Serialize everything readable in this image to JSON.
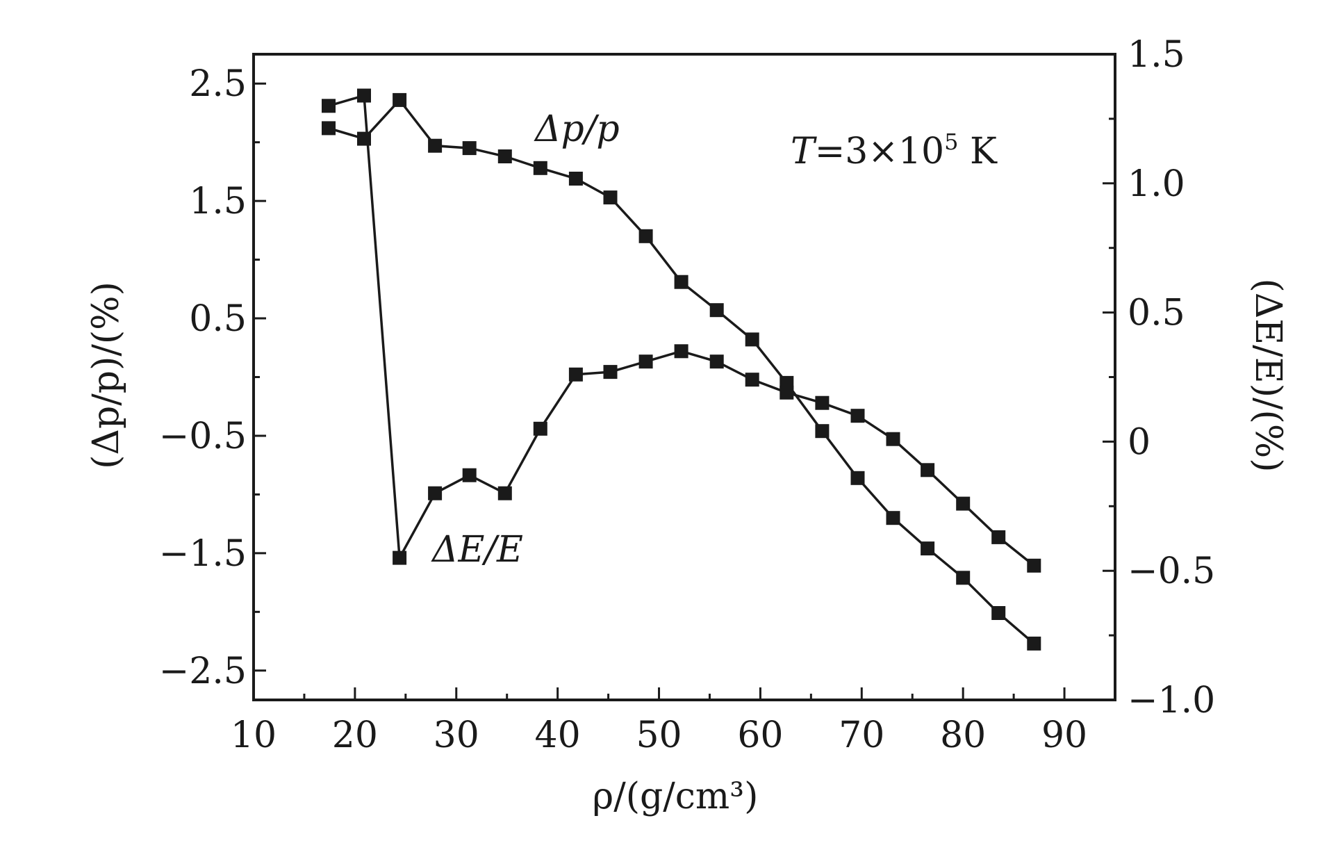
{
  "chart_data": {
    "type": "line",
    "xlabel": "ρ/(g/cm³)",
    "ylabel_left": "(Δp/p)/(%)",
    "ylabel_right": "(ΔE/E)/(%)",
    "xlim": [
      10,
      95
    ],
    "ylim_left": [
      -2.75,
      2.75
    ],
    "ylim_right": [
      -1.0,
      1.5
    ],
    "x_ticks": [
      10,
      20,
      30,
      40,
      50,
      60,
      70,
      80,
      90
    ],
    "x_tick_labels": [
      "10",
      "20",
      "30",
      "40",
      "50",
      "60",
      "70",
      "80",
      "90"
    ],
    "y_left_ticks": [
      2.5,
      1.5,
      0.5,
      -0.5,
      -1.5,
      -2.5
    ],
    "y_left_tick_labels": [
      "2.5",
      "1.5",
      "0.5",
      "−0.5",
      "−1.5",
      "−2.5"
    ],
    "y_right_ticks": [
      1.5,
      1.0,
      0.5,
      0,
      -0.5,
      -1.0
    ],
    "y_right_tick_labels": [
      "1.5",
      "1.0",
      "0.5",
      "0",
      "−0.5",
      "−1.0"
    ],
    "grid": false,
    "series": [
      {
        "name": "Δp/p",
        "axis": "left",
        "marker": "square",
        "x": [
          17.4,
          20.9,
          24.4,
          27.9,
          31.3,
          34.8,
          38.3,
          41.8,
          45.2,
          48.7,
          52.2,
          55.7,
          59.2,
          62.6,
          66.1,
          69.6,
          73.1,
          76.5,
          80.0,
          83.5,
          87.0
        ],
        "values": [
          2.12,
          2.03,
          2.36,
          1.97,
          1.95,
          1.88,
          1.78,
          1.69,
          1.53,
          1.2,
          0.81,
          0.57,
          0.32,
          -0.05,
          -0.46,
          -0.86,
          -1.2,
          -1.46,
          -1.71,
          -2.01,
          -2.27
        ]
      },
      {
        "name": "ΔE/E",
        "axis": "right",
        "marker": "square",
        "x": [
          17.4,
          20.9,
          24.4,
          27.9,
          31.3,
          34.8,
          38.3,
          41.8,
          45.2,
          48.7,
          52.2,
          55.7,
          59.2,
          62.6,
          66.1,
          69.6,
          73.1,
          76.5,
          80.0,
          83.5,
          87.0
        ],
        "values": [
          1.3,
          1.34,
          -0.45,
          -0.2,
          -0.13,
          -0.2,
          0.05,
          0.26,
          0.27,
          0.31,
          0.35,
          0.31,
          0.24,
          0.19,
          0.15,
          0.1,
          0.01,
          -0.11,
          -0.24,
          -0.37,
          -0.48
        ]
      }
    ],
    "annotations": {
      "dp_label": "Δp/p",
      "de_label": "ΔE/E",
      "temperature_prefix": "T",
      "temperature_value": "=3×10",
      "temperature_exp": "5",
      "temperature_unit": " K"
    }
  }
}
